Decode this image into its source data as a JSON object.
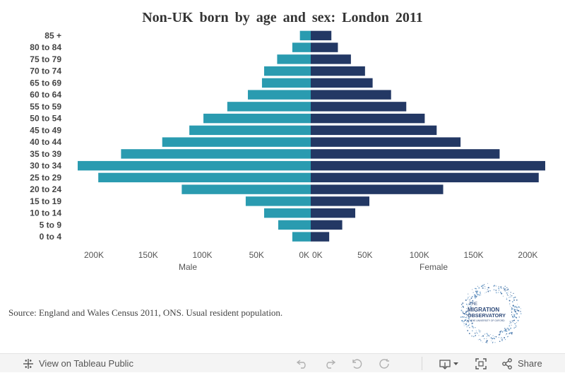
{
  "chart_data": {
    "type": "bar",
    "orientation": "horizontal",
    "subtype": "population-pyramid",
    "title": "Non-UK born by age and sex: London 2011",
    "categories": [
      "85 +",
      "80 to 84",
      "75 to 79",
      "70 to 74",
      "65 to 69",
      "60 to 64",
      "55 to 59",
      "50 to 54",
      "45 to 49",
      "40 to 44",
      "35 to 39",
      "30 to 34",
      "25 to 29",
      "20 to 24",
      "15 to 19",
      "10 to 14",
      "5 to 9",
      "0 to 4"
    ],
    "series": [
      {
        "name": "Male",
        "color": "#2a9bb0",
        "values": [
          10000,
          17000,
          31000,
          43000,
          45000,
          58000,
          77000,
          99000,
          112000,
          137000,
          175000,
          215000,
          196000,
          119000,
          60000,
          43000,
          30000,
          17000
        ]
      },
      {
        "name": "Female",
        "color": "#233864",
        "values": [
          19000,
          25000,
          37000,
          50000,
          57000,
          74000,
          88000,
          105000,
          116000,
          138000,
          174000,
          216000,
          210000,
          122000,
          54000,
          41000,
          29000,
          17000
        ]
      }
    ],
    "xlabel_left": "Male",
    "xlabel_right": "Female",
    "xlim": [
      0,
      220000
    ],
    "ticks": {
      "left": [
        "200K",
        "150K",
        "100K",
        "50K",
        "0K"
      ],
      "right": [
        "0K",
        "50K",
        "100K",
        "150K",
        "200K"
      ]
    },
    "tick_values": [
      0,
      50000,
      100000,
      150000,
      200000
    ],
    "grid": false,
    "legend": "none"
  },
  "source": "Source: England and Wales Census 2011, ONS. Usual resident population.",
  "logo": {
    "line1": "THE",
    "line2": "MIGRATION",
    "line3": "OBSERVATORY",
    "line4": "AT THE UNIVERSITY OF OXFORD"
  },
  "toolbar": {
    "view_label": "View on Tableau Public",
    "share_label": "Share",
    "icons": [
      "tableau-icon",
      "undo-icon",
      "redo-icon",
      "revert-icon",
      "refresh-icon",
      "download-icon",
      "fullscreen-icon",
      "share-icon"
    ]
  }
}
